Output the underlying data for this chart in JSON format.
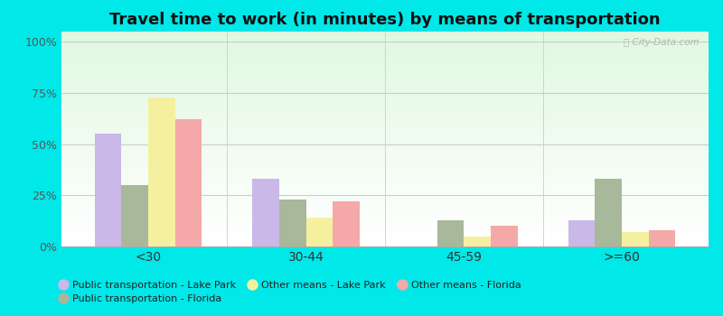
{
  "title": "Travel time to work (in minutes) by means of transportation",
  "categories": [
    "<30",
    "30-44",
    "45-59",
    ">=60"
  ],
  "series_order": [
    "Public transportation - Lake Park",
    "Public transportation - Florida",
    "Other means - Lake Park",
    "Other means - Florida"
  ],
  "series": {
    "Public transportation - Lake Park": [
      55,
      33,
      0,
      13
    ],
    "Public transportation - Florida": [
      30,
      23,
      13,
      33
    ],
    "Other means - Lake Park": [
      73,
      14,
      5,
      7
    ],
    "Other means - Florida": [
      62,
      22,
      10,
      8
    ]
  },
  "colors": {
    "Public transportation - Lake Park": "#c9b8e8",
    "Public transportation - Florida": "#a8b89a",
    "Other means - Lake Park": "#f5f0a0",
    "Other means - Florida": "#f4a8a8"
  },
  "yticks": [
    0,
    25,
    50,
    75,
    100
  ],
  "ylim": [
    0,
    105
  ],
  "outer_bg": "#00e8e8",
  "bar_width": 0.17,
  "title_fontsize": 13
}
